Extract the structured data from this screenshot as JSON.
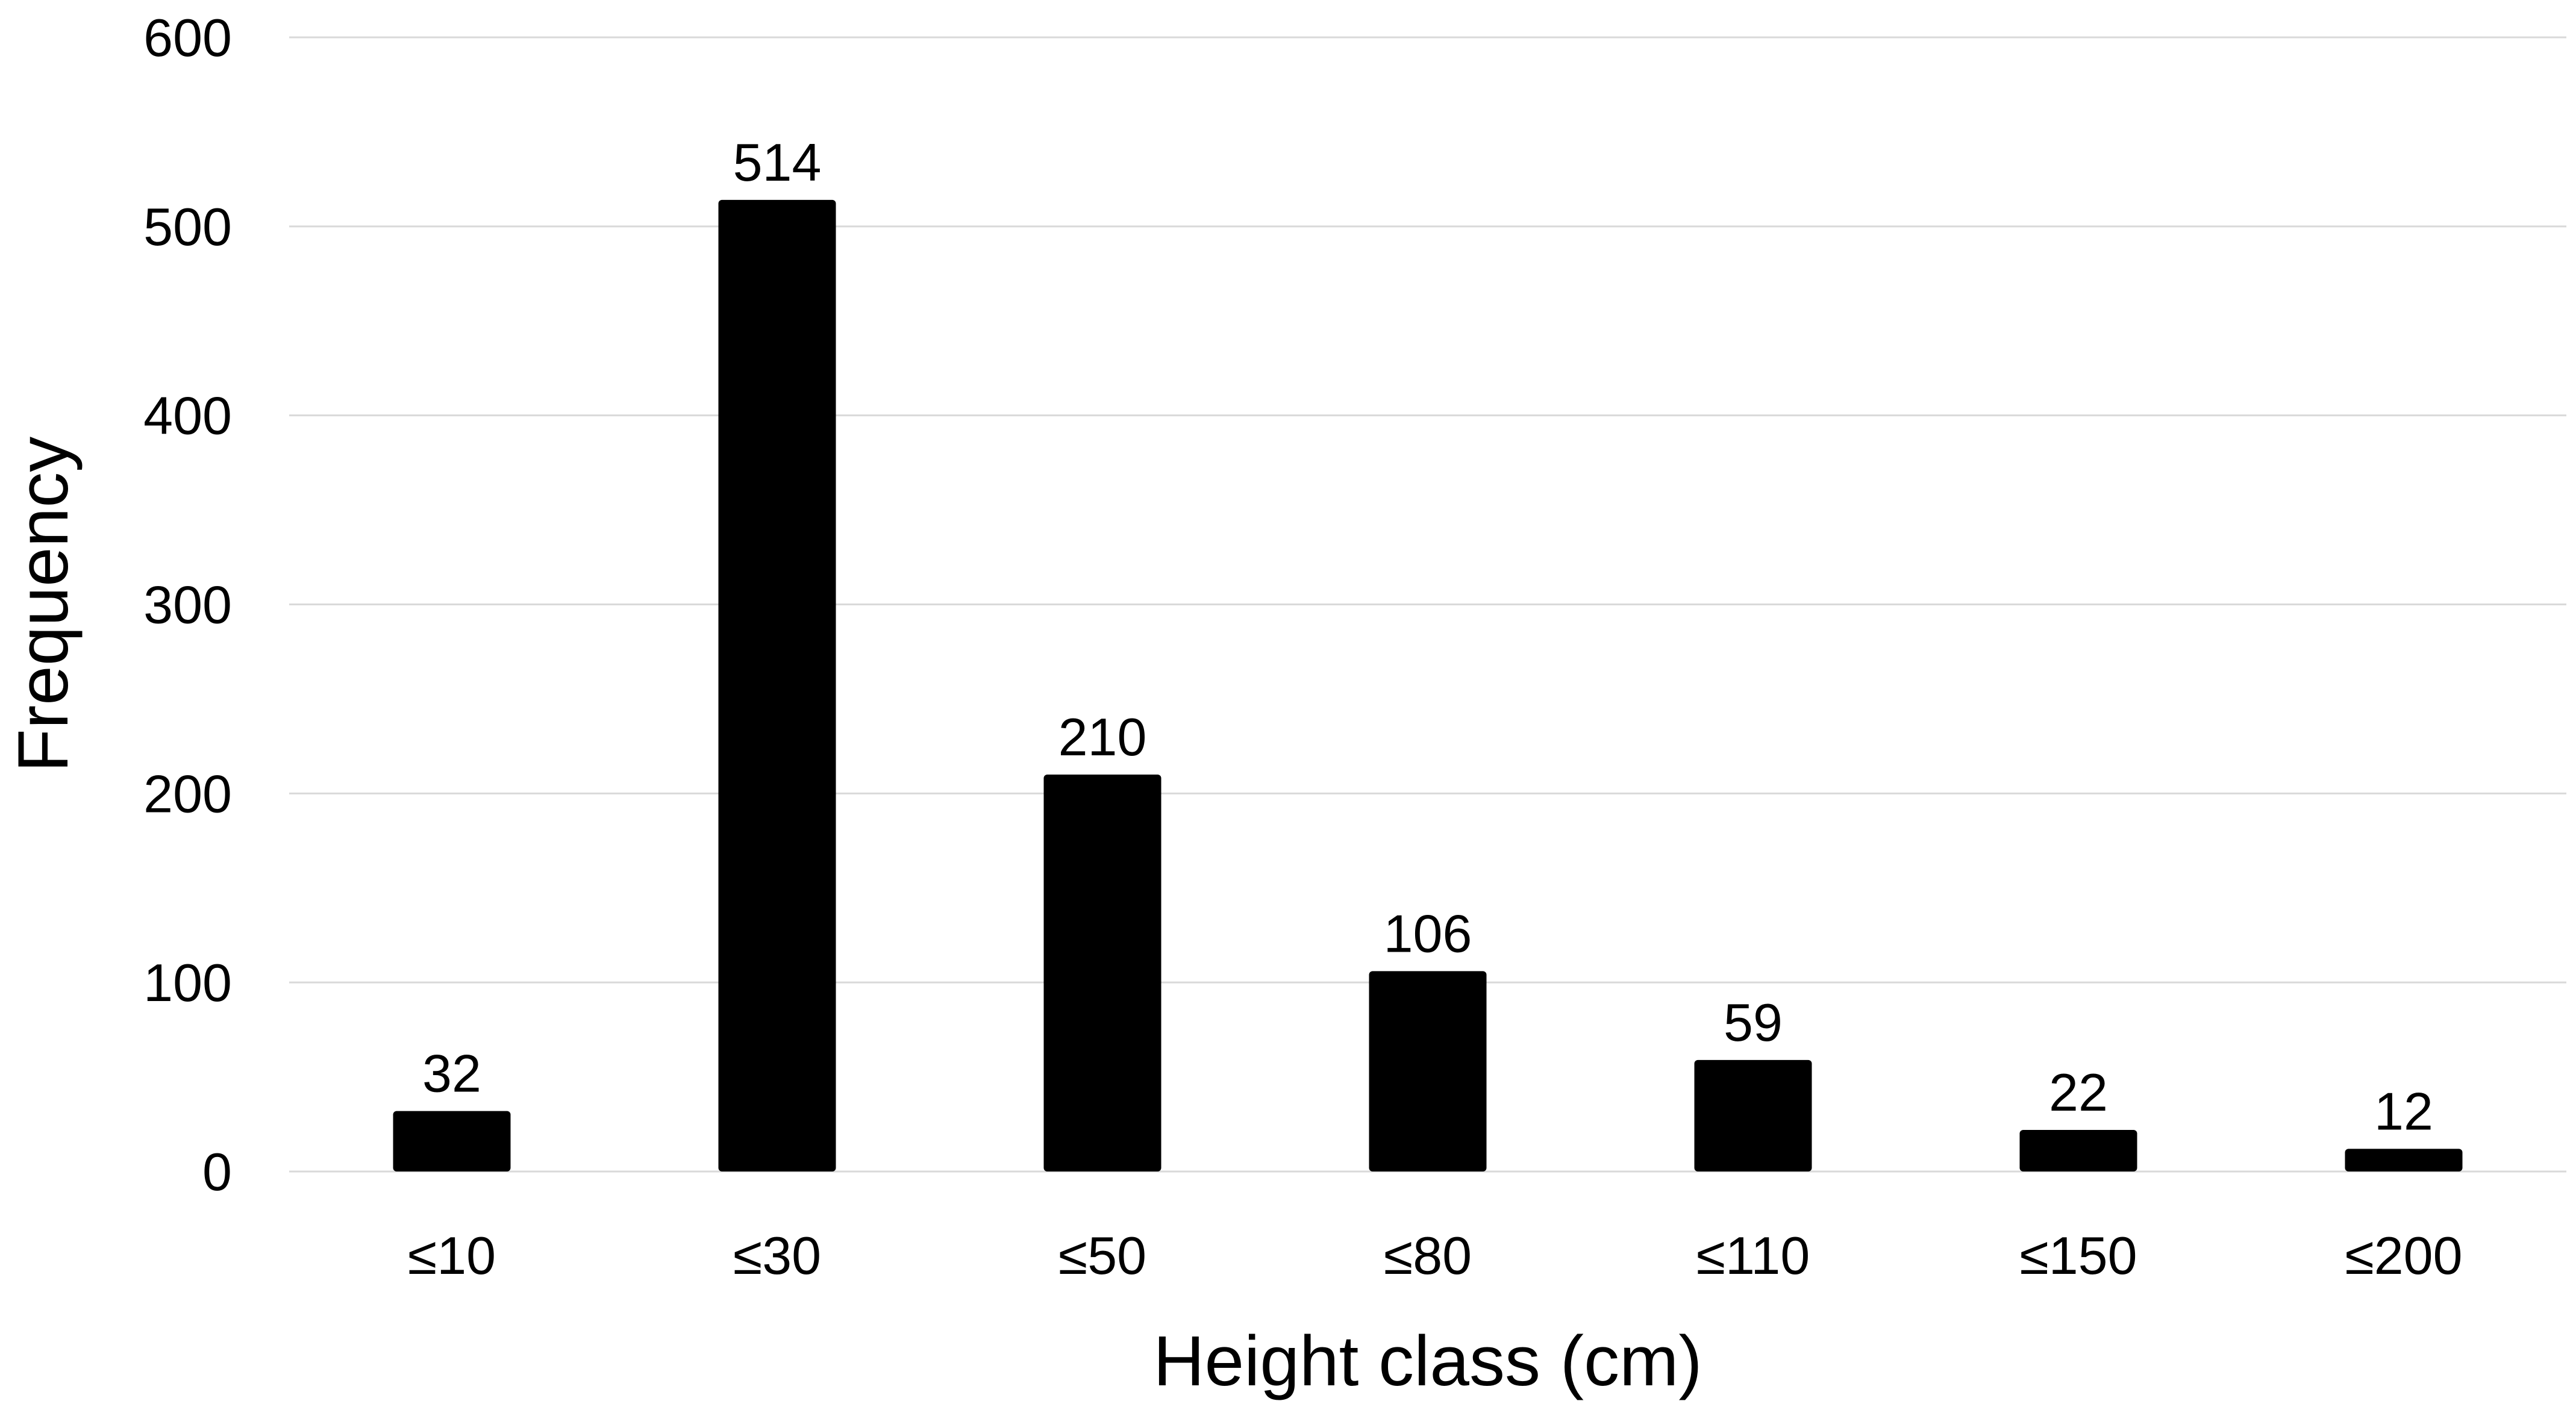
{
  "chart_data": {
    "type": "bar",
    "categories": [
      "≤10",
      "≤30",
      "≤50",
      "≤80",
      "≤110",
      "≤150",
      "≤200"
    ],
    "values": [
      32,
      514,
      210,
      106,
      59,
      22,
      12
    ],
    "data_labels": [
      "32",
      "514",
      "210",
      "106",
      "59",
      "22",
      "12"
    ],
    "xlabel": "Height class (cm)",
    "ylabel": "Frequency",
    "ylim": [
      0,
      600
    ],
    "yticks": [
      0,
      100,
      200,
      300,
      400,
      500,
      600
    ],
    "ytick_labels": [
      "0",
      "100",
      "200",
      "300",
      "400",
      "500",
      "600"
    ],
    "grid": true,
    "legend": "none",
    "bar_color": "#000000",
    "grid_color": "#d9d9d9"
  }
}
